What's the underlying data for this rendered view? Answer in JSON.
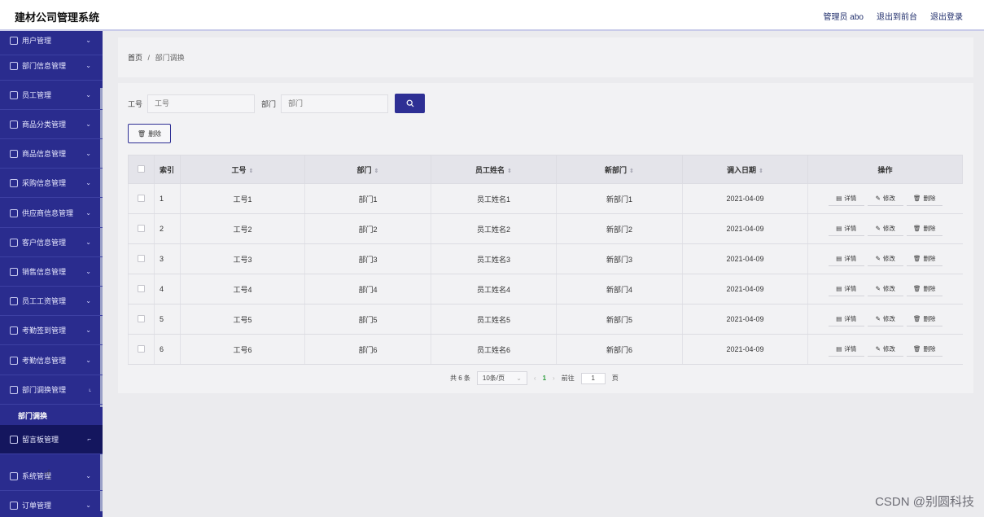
{
  "header": {
    "title": "建材公司管理系统",
    "admin": "管理员 abo",
    "to_front": "退出到前台",
    "logout": "退出登录"
  },
  "sidebar": {
    "items": [
      {
        "label": "用户管理",
        "icon": "user-icon",
        "top": 0
      },
      {
        "label": "部门信息管理",
        "icon": "send-icon"
      },
      {
        "label": "员工管理",
        "icon": "card-icon"
      },
      {
        "label": "商品分类管理",
        "icon": "grid-icon"
      },
      {
        "label": "商品信息管理",
        "icon": "person-icon"
      },
      {
        "label": "采购信息管理",
        "icon": "bar-chart-icon"
      },
      {
        "label": "供应商信息管理",
        "icon": "compass-icon"
      },
      {
        "label": "客户信息管理",
        "icon": "mail-icon"
      },
      {
        "label": "销售信息管理",
        "icon": "list-icon"
      },
      {
        "label": "员工工资管理",
        "icon": "settings-icon"
      },
      {
        "label": "考勤签到管理",
        "icon": "mic-icon"
      },
      {
        "label": "考勤信息管理",
        "icon": "calendar-icon"
      },
      {
        "label": "部门调换管理",
        "icon": "clock-icon"
      },
      {
        "label": "留言板管理",
        "icon": "power-icon"
      },
      {
        "label": "系统管理",
        "icon": "chart-icon"
      },
      {
        "label": "订单管理",
        "icon": "phone-icon"
      }
    ],
    "submenu": "部门调换"
  },
  "breadcrumb": {
    "home": "首页",
    "sep": "/",
    "current": "部门调换"
  },
  "search": {
    "label1": "工号",
    "placeholder1": "工号",
    "label2": "部门",
    "placeholder2": "部门"
  },
  "toolbar": {
    "delete": "删除"
  },
  "table": {
    "headers": [
      "索引",
      "工号",
      "部门",
      "员工姓名",
      "新部门",
      "调入日期",
      "操作"
    ],
    "rows": [
      [
        "1",
        "工号1",
        "部门1",
        "员工姓名1",
        "新部门1",
        "2021-04-09"
      ],
      [
        "2",
        "工号2",
        "部门2",
        "员工姓名2",
        "新部门2",
        "2021-04-09"
      ],
      [
        "3",
        "工号3",
        "部门3",
        "员工姓名3",
        "新部门3",
        "2021-04-09"
      ],
      [
        "4",
        "工号4",
        "部门4",
        "员工姓名4",
        "新部门4",
        "2021-04-09"
      ],
      [
        "5",
        "工号5",
        "部门5",
        "员工姓名5",
        "新部门5",
        "2021-04-09"
      ],
      [
        "6",
        "工号6",
        "部门6",
        "员工姓名6",
        "新部门6",
        "2021-04-09"
      ]
    ],
    "ops": [
      "详情",
      "修改",
      "删除"
    ]
  },
  "pager": {
    "total": "共 6 条",
    "size": "10条/页",
    "page": "1",
    "goto": "前往",
    "goto_value": "1",
    "page_unit": "页"
  },
  "watermark": "CSDN @别圆科技",
  "colors": {
    "sidebar": "#2a2c8e",
    "accent": "#2e2f94"
  }
}
